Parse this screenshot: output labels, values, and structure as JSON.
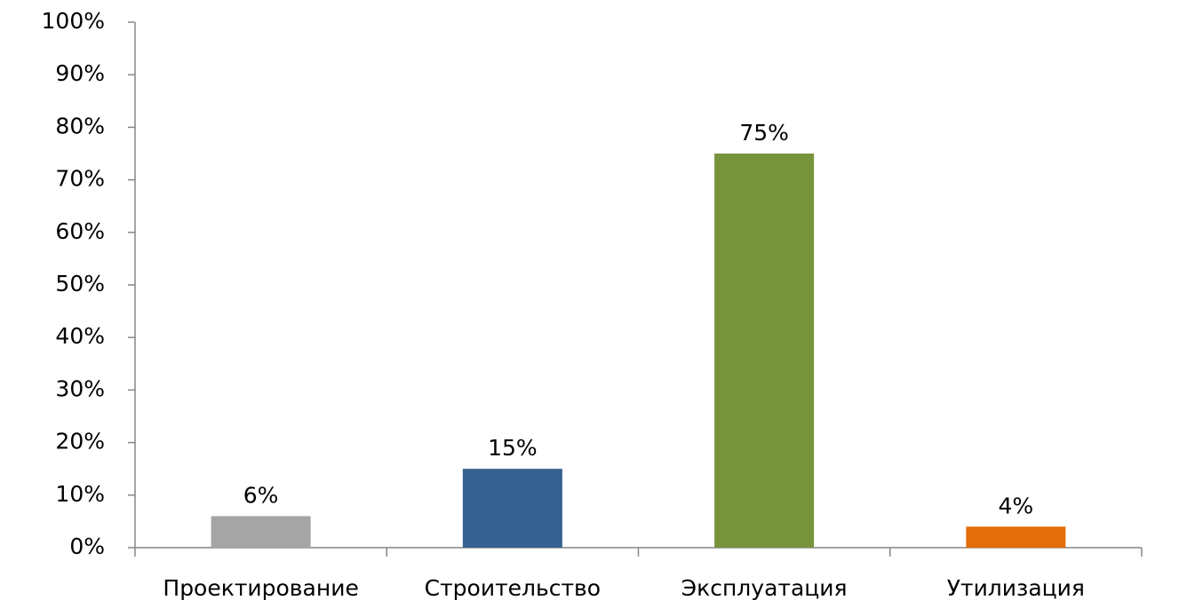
{
  "chart_data": {
    "type": "bar",
    "categories": [
      "Проектирование",
      "Строительство",
      "Эксплуатация",
      "Утилизация"
    ],
    "values": [
      6,
      15,
      75,
      4
    ],
    "value_labels": [
      "6%",
      "15%",
      "75%",
      "4%"
    ],
    "colors": [
      "#a5a5a5",
      "#376092",
      "#77933c",
      "#e46c0a"
    ],
    "ylim": [
      0,
      100
    ],
    "yticks": [
      {
        "value": 0,
        "label": "0%"
      },
      {
        "value": 10,
        "label": "10%"
      },
      {
        "value": 20,
        "label": "20%"
      },
      {
        "value": 30,
        "label": "30%"
      },
      {
        "value": 40,
        "label": "40%"
      },
      {
        "value": 50,
        "label": "50%"
      },
      {
        "value": 60,
        "label": "60%"
      },
      {
        "value": 70,
        "label": "70%"
      },
      {
        "value": 80,
        "label": "80%"
      },
      {
        "value": 90,
        "label": "90%"
      },
      {
        "value": 100,
        "label": "100%"
      }
    ],
    "grid": false
  }
}
